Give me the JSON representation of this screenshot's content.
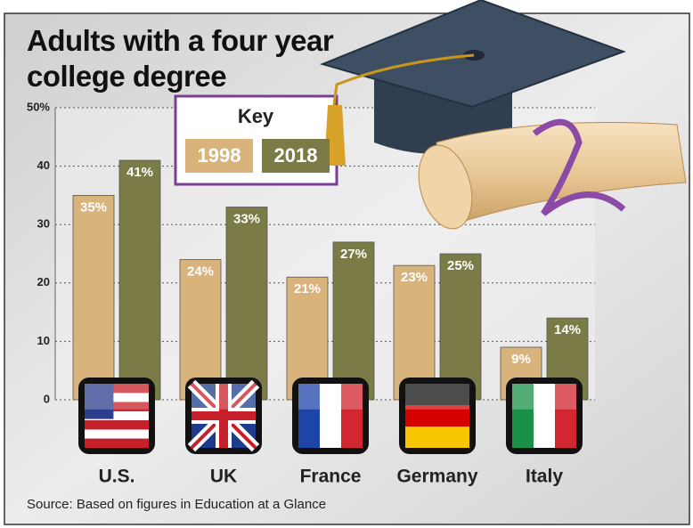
{
  "chart_data": {
    "type": "bar",
    "title": "Adults with a four year college degree",
    "source": "Source: Based on figures in Education at a Glance",
    "legend_title": "Key",
    "categories": [
      "U.S.",
      "UK",
      "France",
      "Germany",
      "Italy"
    ],
    "series": [
      {
        "name": "1998",
        "color": "#d9b37c",
        "values": [
          35,
          24,
          21,
          23,
          9
        ],
        "value_labels": [
          "35%",
          "24%",
          "21%",
          "23%",
          "9%"
        ]
      },
      {
        "name": "2018",
        "color": "#7b7b47",
        "values": [
          41,
          33,
          27,
          25,
          14
        ],
        "value_labels": [
          "41%",
          "33%",
          "27%",
          "25%",
          "14%"
        ]
      }
    ],
    "ylim": [
      0,
      50
    ],
    "yticks": [
      0,
      10,
      20,
      30,
      40,
      {
        "value": 50,
        "label": "50%"
      }
    ],
    "grid": true
  }
}
